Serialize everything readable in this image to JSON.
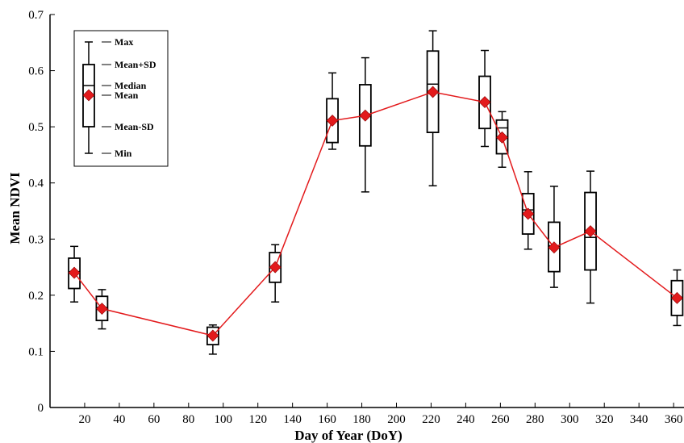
{
  "chart_data": {
    "type": "box",
    "xlabel": "Day of Year (DoY)",
    "ylabel": "Mean NDVI",
    "xlim": [
      0,
      366
    ],
    "ylim": [
      0,
      0.7
    ],
    "x_ticks": [
      20,
      40,
      60,
      80,
      100,
      120,
      140,
      160,
      180,
      200,
      220,
      240,
      260,
      280,
      300,
      320,
      340,
      360
    ],
    "y_ticks": [
      0,
      0.1,
      0.2,
      0.3,
      0.4,
      0.5,
      0.6,
      0.7
    ],
    "y_tick_labels": [
      "0",
      "0.1",
      "0.2",
      "0.3",
      "0.4",
      "0.5",
      "0.6",
      "0.7"
    ],
    "grid": false,
    "legend": {
      "placement": "top-left",
      "entries": [
        "Max",
        "Mean+SD",
        "Median",
        "Mean",
        "Mean-SD",
        "Min"
      ]
    },
    "series": [
      {
        "doy": [
          14,
          30,
          94,
          130,
          163,
          182,
          221,
          251,
          261,
          276,
          291,
          312,
          362
        ],
        "min": [
          0.188,
          0.14,
          0.095,
          0.188,
          0.46,
          0.384,
          0.395,
          0.465,
          0.428,
          0.282,
          0.214,
          0.186,
          0.146
        ],
        "mean_minus_sd": [
          0.212,
          0.155,
          0.112,
          0.223,
          0.472,
          0.466,
          0.49,
          0.497,
          0.452,
          0.309,
          0.242,
          0.245,
          0.164
        ],
        "median": [
          0.242,
          0.178,
          0.127,
          0.25,
          0.51,
          0.52,
          0.576,
          0.545,
          0.498,
          0.352,
          0.288,
          0.303,
          0.196
        ],
        "mean": [
          0.24,
          0.176,
          0.128,
          0.25,
          0.511,
          0.52,
          0.562,
          0.544,
          0.481,
          0.345,
          0.285,
          0.314,
          0.195
        ],
        "mean_plus_sd": [
          0.266,
          0.198,
          0.143,
          0.276,
          0.55,
          0.575,
          0.635,
          0.59,
          0.512,
          0.381,
          0.33,
          0.383,
          0.226
        ],
        "max": [
          0.287,
          0.21,
          0.147,
          0.29,
          0.596,
          0.623,
          0.671,
          0.636,
          0.527,
          0.42,
          0.394,
          0.421,
          0.245
        ]
      }
    ],
    "colors": {
      "line": "#e31a1c",
      "marker": "#e31a1c",
      "box": "#000000"
    }
  }
}
